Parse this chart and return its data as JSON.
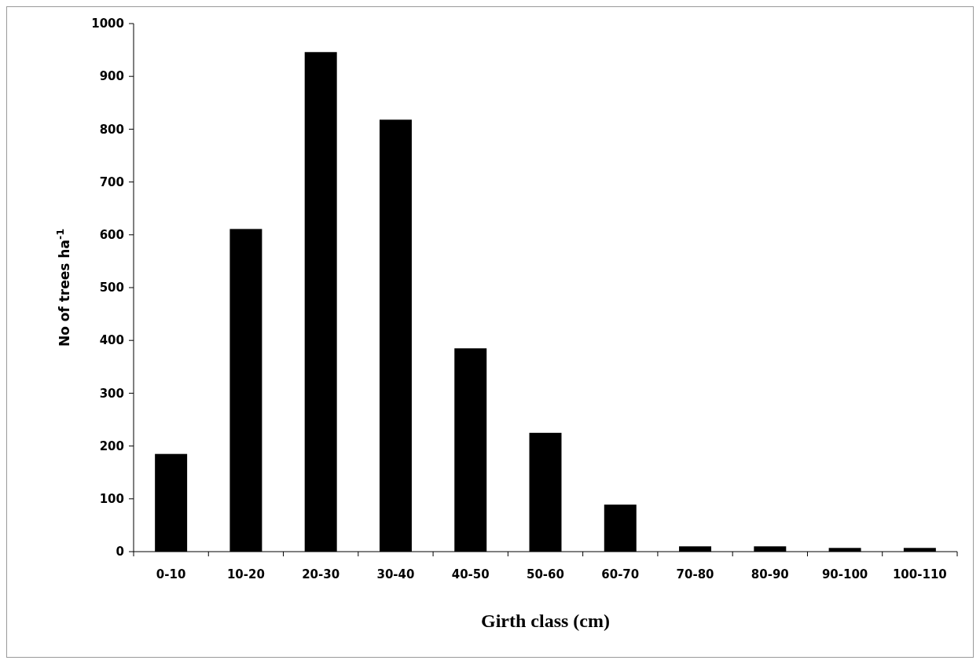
{
  "chart_data": {
    "type": "bar",
    "xlabel": "Girth class (cm)",
    "ylabel": "No of trees ha$^{-1}$",
    "categories": [
      "0-10",
      "10-20",
      "20-30",
      "30-40",
      "40-50",
      "50-60",
      "60-70",
      "70-80",
      "80-90",
      "90-100",
      "100-110"
    ],
    "values": [
      185,
      611,
      946,
      818,
      385,
      225,
      89,
      10,
      10,
      7,
      7
    ],
    "color": "#000000",
    "ylim": [
      0,
      1000
    ],
    "yticks": [
      0,
      100,
      200,
      300,
      400,
      500,
      600,
      700,
      800,
      900,
      1000
    ],
    "grid": false
  }
}
